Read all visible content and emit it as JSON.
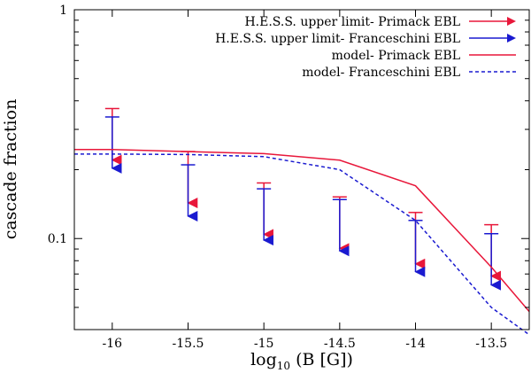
{
  "chart_data": {
    "type": "line",
    "xlabel": "log",
    "xlabel_sub": "10",
    "xlabel_rest": " (B [G])",
    "ylabel": "cascade fraction",
    "xlim": [
      -16.25,
      -13.25
    ],
    "ylim": [
      0.04,
      1
    ],
    "yscale": "log",
    "x_ticks": [
      -16,
      -15.5,
      -15,
      -14.5,
      -14,
      -13.5
    ],
    "x_tick_labels": [
      "-16",
      "-15.5",
      "-15",
      "-14.5",
      "-14",
      "-13.5"
    ],
    "y_ticks": [
      0.1,
      1
    ],
    "y_tick_labels": [
      "0.1",
      "1"
    ],
    "y_minor_ticks": [
      0.05,
      0.06,
      0.07,
      0.08,
      0.09,
      0.2,
      0.3,
      0.4,
      0.5,
      0.6,
      0.7,
      0.8,
      0.9
    ],
    "legend_position": "top-right",
    "series": [
      {
        "name": "H.E.S.S. upper limit- Primack EBL",
        "kind": "upper_limit",
        "color": "#e8173a",
        "x": [
          -16,
          -15.5,
          -15,
          -14.5,
          -14,
          -13.5
        ],
        "y": [
          0.37,
          0.24,
          0.175,
          0.152,
          0.13,
          0.115
        ]
      },
      {
        "name": "H.E.S.S. upper limit- Franceschini EBL",
        "kind": "upper_limit",
        "color": "#1a1ad0",
        "x": [
          -16,
          -15.5,
          -15,
          -14.5,
          -14,
          -13.5
        ],
        "y": [
          0.34,
          0.21,
          0.165,
          0.148,
          0.12,
          0.105
        ]
      },
      {
        "name": "model- Primack EBL",
        "kind": "line",
        "style": "solid",
        "color": "#e8173a",
        "x": [
          -16.25,
          -16,
          -15.5,
          -15,
          -14.5,
          -14,
          -13.5,
          -13.25
        ],
        "y": [
          0.245,
          0.245,
          0.24,
          0.235,
          0.22,
          0.17,
          0.075,
          0.048
        ]
      },
      {
        "name": "model- Franceschini EBL",
        "kind": "line",
        "style": "dashed",
        "color": "#1a1ad0",
        "x": [
          -16.25,
          -16,
          -15.5,
          -15,
          -14.5,
          -14,
          -13.5,
          -13.25
        ],
        "y": [
          0.234,
          0.234,
          0.233,
          0.228,
          0.2,
          0.12,
          0.05,
          0.038
        ]
      }
    ]
  }
}
